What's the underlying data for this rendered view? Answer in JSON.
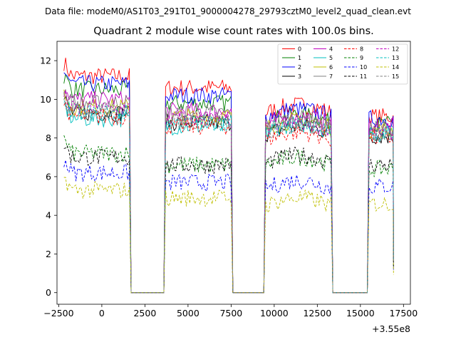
{
  "suptitle": "Data file: modeM0/AS1T03_291T01_9000004278_29793cztM0_level2_quad_clean.evt",
  "chart_data": {
    "type": "line",
    "title": "Quadrant 2 module wise count rates with 100.0s bins.",
    "xlabel": "",
    "ylabel": "",
    "x_offset_label": "+3.55e8",
    "xlim": [
      -2600,
      17900
    ],
    "ylim": [
      -0.6,
      13.0
    ],
    "xticks": [
      -2500,
      0,
      2500,
      5000,
      7500,
      10000,
      12500,
      15000,
      17500
    ],
    "xtick_labels": [
      "−2500",
      "0",
      "2500",
      "5000",
      "7500",
      "10000",
      "12500",
      "15000",
      "17500"
    ],
    "yticks": [
      0,
      2,
      4,
      6,
      8,
      10,
      12
    ],
    "ytick_labels": [
      "0",
      "2",
      "4",
      "6",
      "8",
      "10",
      "12"
    ],
    "legend_position": "top-right",
    "bin_size_s": 100,
    "data_segments": [
      [
        -2200,
        1600
      ],
      [
        3700,
        7500
      ],
      [
        9500,
        13300
      ],
      [
        15500,
        16900
      ]
    ],
    "gap_value": 0,
    "series": [
      {
        "name": "0",
        "color": "#ff0000",
        "style": "solid",
        "levels": [
          11.2,
          10.6,
          9.5,
          9.1
        ]
      },
      {
        "name": "1",
        "color": "#008000",
        "style": "solid",
        "levels": [
          10.5,
          9.8,
          9.0,
          8.7
        ]
      },
      {
        "name": "2",
        "color": "#0000ff",
        "style": "solid",
        "levels": [
          10.8,
          10.2,
          9.3,
          9.0
        ]
      },
      {
        "name": "3",
        "color": "#000000",
        "style": "solid",
        "levels": [
          9.3,
          8.8,
          8.4,
          8.1
        ]
      },
      {
        "name": "4",
        "color": "#bf00bf",
        "style": "solid",
        "levels": [
          10.0,
          9.4,
          8.9,
          8.6
        ]
      },
      {
        "name": "5",
        "color": "#00bfbf",
        "style": "solid",
        "levels": [
          9.0,
          8.6,
          8.5,
          8.2
        ]
      },
      {
        "name": "6",
        "color": "#bfbf00",
        "style": "solid",
        "levels": [
          9.6,
          9.1,
          8.7,
          8.4
        ]
      },
      {
        "name": "7",
        "color": "#808080",
        "style": "solid",
        "levels": [
          9.8,
          9.3,
          8.8,
          8.5
        ]
      },
      {
        "name": "8",
        "color": "#ff0000",
        "style": "dashed",
        "levels": [
          9.1,
          8.6,
          8.1,
          8.0
        ]
      },
      {
        "name": "9",
        "color": "#008000",
        "style": "dashed",
        "levels": [
          7.2,
          6.6,
          6.8,
          6.4
        ]
      },
      {
        "name": "10",
        "color": "#0000ff",
        "style": "dashed",
        "levels": [
          6.2,
          5.7,
          5.6,
          5.5
        ]
      },
      {
        "name": "11",
        "color": "#000000",
        "style": "dashed",
        "levels": [
          7.0,
          6.6,
          6.9,
          6.6
        ]
      },
      {
        "name": "12",
        "color": "#bf00bf",
        "style": "dashed",
        "levels": [
          9.5,
          9.0,
          8.6,
          8.3
        ]
      },
      {
        "name": "13",
        "color": "#00bfbf",
        "style": "dashed",
        "levels": [
          9.3,
          8.8,
          8.5,
          8.2
        ]
      },
      {
        "name": "14",
        "color": "#bfbf00",
        "style": "dashed",
        "levels": [
          5.3,
          4.9,
          4.7,
          4.6
        ]
      },
      {
        "name": "15",
        "color": "#808080",
        "style": "dashed",
        "levels": [
          9.4,
          8.9,
          8.5,
          8.2
        ]
      }
    ]
  }
}
